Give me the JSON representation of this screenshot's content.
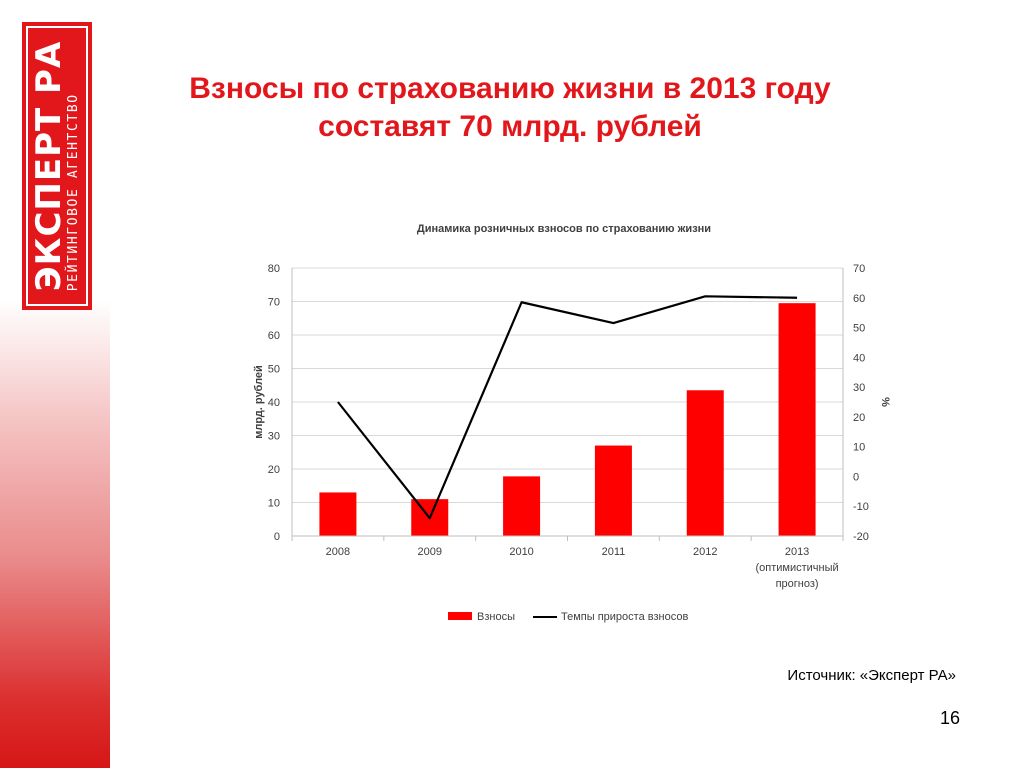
{
  "logo": {
    "main": "ЭКСПЕРТ РА",
    "sub": "РЕЙТИНГОВОЕ АГЕНТСТВО"
  },
  "slide": {
    "title_line1": "Взносы по страхованию жизни в 2013 году",
    "title_line2": "составят 70 млрд. рублей",
    "source": "Источник: «Эксперт РА»",
    "page_number": "16"
  },
  "colors": {
    "accent": "#e2171c",
    "bar": "#ff0000",
    "line": "#000000",
    "grid": "#d9d9d9"
  },
  "chart_data": {
    "type": "bar",
    "title": "Динамика розничных взносов по страхованию жизни",
    "categories": [
      [
        "2008"
      ],
      [
        "2009"
      ],
      [
        "2010"
      ],
      [
        "2011"
      ],
      [
        "2012"
      ],
      [
        "2013",
        "(оптимистичный",
        "прогноз)"
      ]
    ],
    "ylabel": "млрд. рублей",
    "y2label": "%",
    "ylim": [
      0,
      80
    ],
    "y2lim": [
      -20,
      70
    ],
    "yticks": [
      0,
      10,
      20,
      30,
      40,
      50,
      60,
      70,
      80
    ],
    "y2ticks": [
      -20,
      -10,
      0,
      10,
      20,
      30,
      40,
      50,
      60,
      70
    ],
    "grid": true,
    "legend_position": "bottom",
    "series": [
      {
        "name": "Взносы",
        "type": "bar",
        "axis": "left",
        "values": [
          13,
          11,
          17.8,
          27,
          43.5,
          69.5
        ]
      },
      {
        "name": "Темпы прироста взносов",
        "type": "line",
        "axis": "right",
        "values": [
          25,
          -14,
          58.5,
          51.5,
          60.5,
          60
        ]
      }
    ]
  }
}
